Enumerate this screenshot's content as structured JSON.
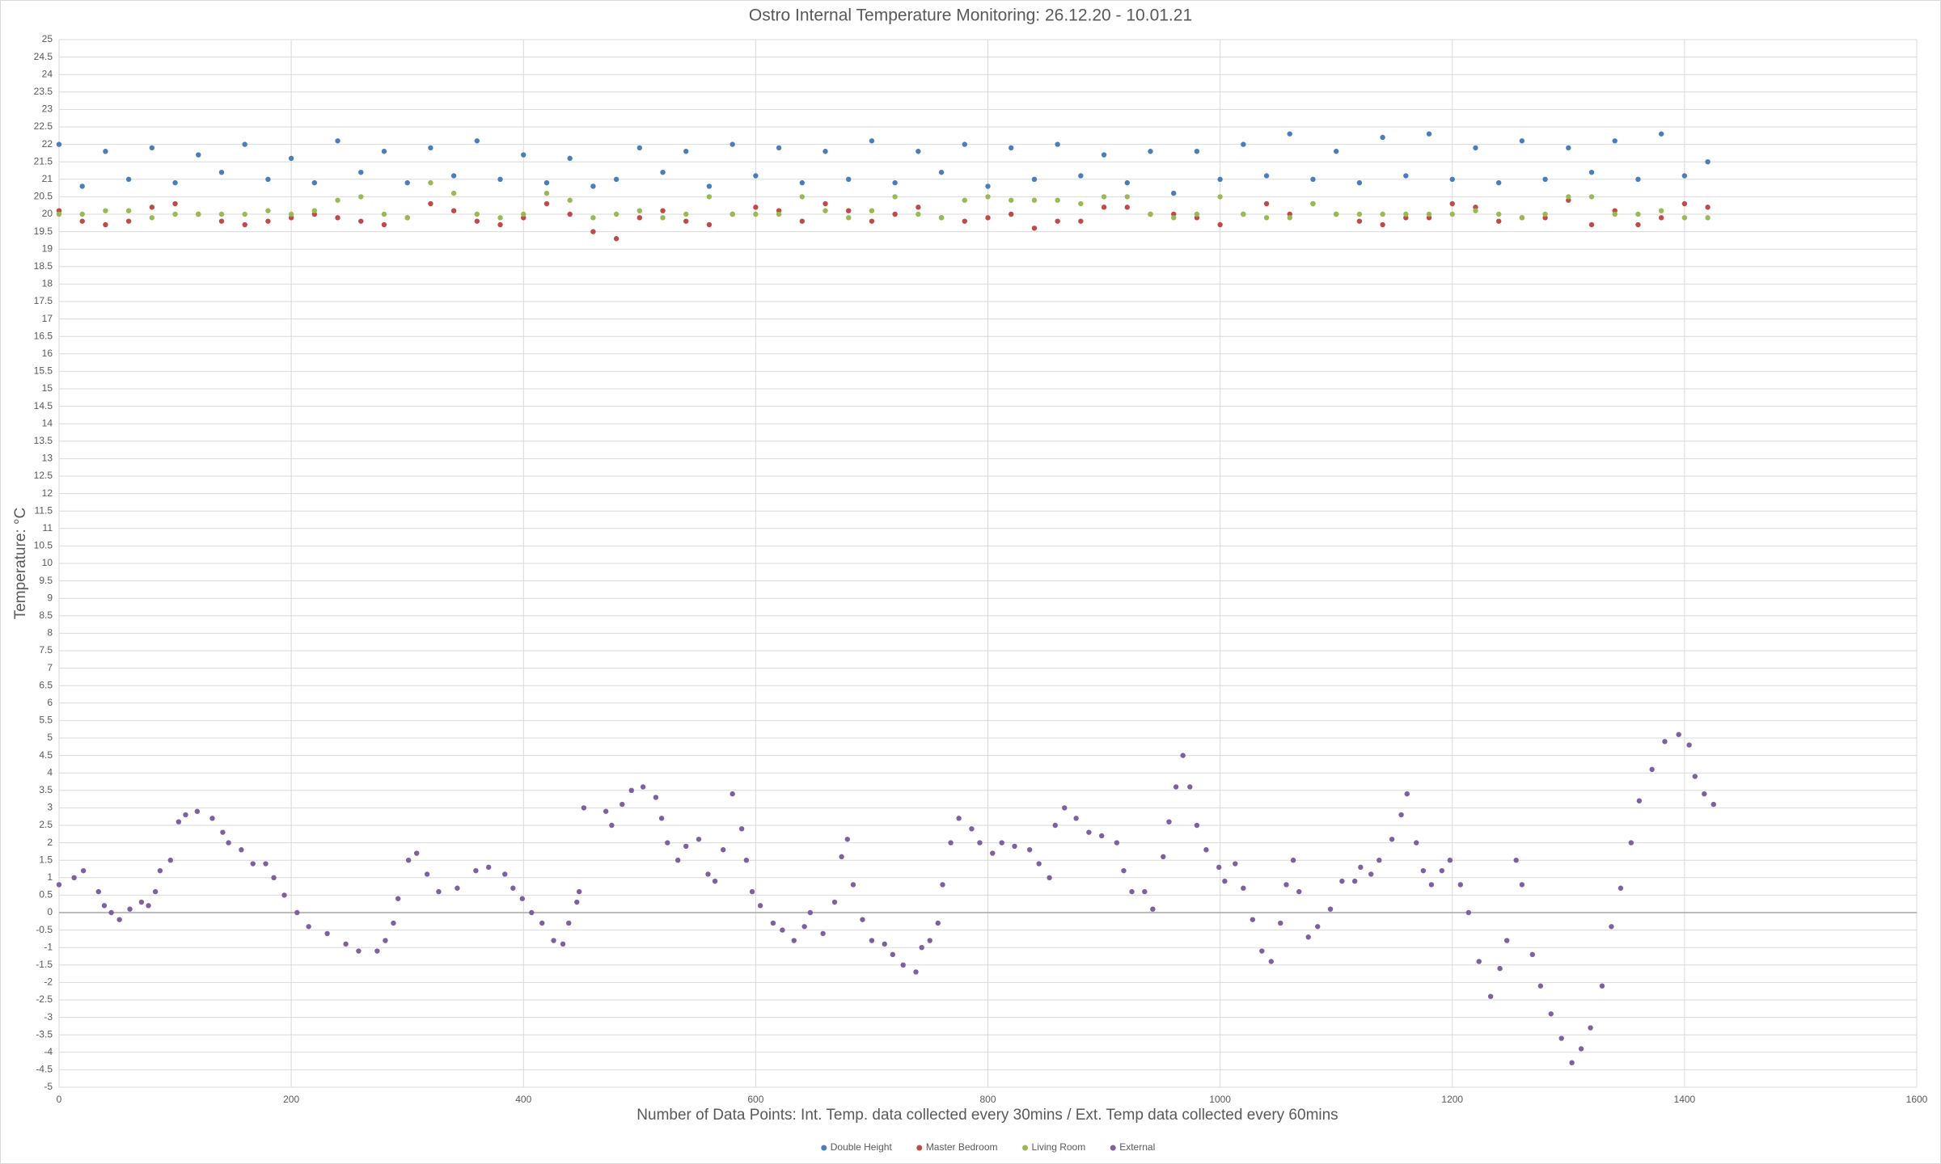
{
  "chart_data": {
    "type": "scatter",
    "title": "Ostro Internal Temperature Monitoring: 26.12.20 - 10.01.21",
    "x_label": "Number of Data Points: Int. Temp. data collected every 30mins / Ext. Temp data collected every 60mins",
    "y_label": "Temperature: °C",
    "xlim": [
      0,
      1600
    ],
    "xticks": [
      0,
      200,
      400,
      600,
      800,
      1000,
      1200,
      1400,
      1600
    ],
    "ylim": [
      -5,
      25
    ],
    "yticks": [
      -5,
      -4.5,
      -4,
      -3.5,
      -3,
      -2.5,
      -2,
      -1.5,
      -1,
      -0.5,
      0,
      0.5,
      1,
      1.5,
      2,
      2.5,
      3,
      3.5,
      4,
      4.5,
      5,
      5.5,
      6,
      6.5,
      7,
      7.5,
      8,
      8.5,
      9,
      9.5,
      10,
      10.5,
      11,
      11.5,
      12,
      12.5,
      13,
      13.5,
      14,
      14.5,
      15,
      15.5,
      16,
      16.5,
      17,
      17.5,
      18,
      18.5,
      19,
      19.5,
      20,
      20.5,
      21,
      21.5,
      22,
      22.5,
      23,
      23.5,
      24,
      24.5,
      25
    ],
    "grid": true,
    "legend": "bottom",
    "series": [
      {
        "name": "Double Height",
        "color": "#4a7ebb",
        "x": [
          0,
          20,
          40,
          60,
          80,
          100,
          120,
          140,
          160,
          180,
          200,
          220,
          240,
          260,
          280,
          300,
          320,
          340,
          360,
          380,
          400,
          420,
          440,
          460,
          480,
          500,
          520,
          540,
          560,
          580,
          600,
          620,
          640,
          660,
          680,
          700,
          720,
          740,
          760,
          780,
          800,
          820,
          840,
          860,
          880,
          900,
          920,
          940,
          960,
          980,
          1000,
          1020,
          1040,
          1060,
          1080,
          1100,
          1120,
          1140,
          1160,
          1180,
          1200,
          1220,
          1240,
          1260,
          1280,
          1300,
          1320,
          1340,
          1360,
          1380,
          1400,
          1420
        ],
        "values": [
          22.0,
          20.8,
          21.8,
          21.0,
          21.9,
          20.9,
          21.7,
          21.2,
          22.0,
          21.0,
          21.6,
          20.9,
          22.1,
          21.2,
          21.8,
          20.9,
          21.9,
          21.1,
          22.1,
          21.0,
          21.7,
          20.9,
          21.6,
          20.8,
          21.0,
          21.9,
          21.2,
          21.8,
          20.8,
          22.0,
          21.1,
          21.9,
          20.9,
          21.8,
          21.0,
          22.1,
          20.9,
          21.8,
          21.2,
          22.0,
          20.8,
          21.9,
          21.0,
          22.0,
          21.1,
          21.7,
          20.9,
          21.8,
          20.6,
          21.8,
          21.0,
          22.0,
          21.1,
          22.3,
          21.0,
          21.8,
          20.9,
          22.2,
          21.1,
          22.3,
          21.0,
          21.9,
          20.9,
          22.1,
          21.0,
          21.9,
          21.2,
          22.1,
          21.0,
          22.3,
          21.1,
          21.5
        ]
      },
      {
        "name": "Master Bedroom",
        "color": "#be4b48",
        "x": [
          0,
          20,
          40,
          60,
          80,
          100,
          120,
          140,
          160,
          180,
          200,
          220,
          240,
          260,
          280,
          300,
          320,
          340,
          360,
          380,
          400,
          420,
          440,
          460,
          480,
          500,
          520,
          540,
          560,
          580,
          600,
          620,
          640,
          660,
          680,
          700,
          720,
          740,
          760,
          780,
          800,
          820,
          840,
          860,
          880,
          900,
          920,
          940,
          960,
          980,
          1000,
          1020,
          1040,
          1060,
          1080,
          1100,
          1120,
          1140,
          1160,
          1180,
          1200,
          1220,
          1240,
          1260,
          1280,
          1300,
          1320,
          1340,
          1360,
          1380,
          1400,
          1420
        ],
        "values": [
          20.1,
          19.8,
          19.7,
          19.8,
          20.2,
          20.3,
          20.0,
          19.8,
          19.7,
          19.8,
          19.9,
          20.0,
          19.9,
          19.8,
          19.7,
          19.9,
          20.3,
          20.1,
          19.8,
          19.7,
          19.9,
          20.3,
          20.0,
          19.5,
          19.3,
          19.9,
          20.1,
          19.8,
          19.7,
          20.0,
          20.2,
          20.1,
          19.8,
          20.3,
          20.1,
          19.8,
          20.0,
          20.2,
          19.9,
          19.8,
          19.9,
          20.0,
          19.6,
          19.8,
          19.8,
          20.2,
          20.2,
          20.0,
          20.0,
          19.9,
          19.7,
          20.0,
          20.3,
          20.0,
          20.3,
          20.0,
          19.8,
          19.7,
          19.9,
          19.9,
          20.3,
          20.2,
          19.8,
          19.9,
          19.9,
          20.4,
          19.7,
          20.1,
          19.7,
          19.9,
          20.3,
          20.2
        ]
      },
      {
        "name": "Living Room",
        "color": "#98b954",
        "x": [
          0,
          20,
          40,
          60,
          80,
          100,
          120,
          140,
          160,
          180,
          200,
          220,
          240,
          260,
          280,
          300,
          320,
          340,
          360,
          380,
          400,
          420,
          440,
          460,
          480,
          500,
          520,
          540,
          560,
          580,
          600,
          620,
          640,
          660,
          680,
          700,
          720,
          740,
          760,
          780,
          800,
          820,
          840,
          860,
          880,
          900,
          920,
          940,
          960,
          980,
          1000,
          1020,
          1040,
          1060,
          1080,
          1100,
          1120,
          1140,
          1160,
          1180,
          1200,
          1220,
          1240,
          1260,
          1280,
          1300,
          1320,
          1340,
          1360,
          1380,
          1400,
          1420
        ],
        "values": [
          20.0,
          20.0,
          20.1,
          20.1,
          19.9,
          20.0,
          20.0,
          20.0,
          20.0,
          20.1,
          20.0,
          20.1,
          20.4,
          20.5,
          20.0,
          19.9,
          20.9,
          20.6,
          20.0,
          19.9,
          20.0,
          20.6,
          20.4,
          19.9,
          20.0,
          20.1,
          19.9,
          20.0,
          20.5,
          20.0,
          20.0,
          20.0,
          20.5,
          20.1,
          19.9,
          20.1,
          20.5,
          20.0,
          19.9,
          20.4,
          20.5,
          20.4,
          20.4,
          20.4,
          20.3,
          20.5,
          20.5,
          20.0,
          19.9,
          20.0,
          20.5,
          20.0,
          19.9,
          19.9,
          20.3,
          20.0,
          20.0,
          20.0,
          20.0,
          20.0,
          20.0,
          20.1,
          20.0,
          19.9,
          20.0,
          20.5,
          20.5,
          20.0,
          20.0,
          20.1,
          19.9,
          19.9
        ]
      },
      {
        "name": "External",
        "color": "#7d60a0",
        "x": [
          0,
          13,
          21,
          34,
          39,
          45,
          52,
          61,
          71,
          77,
          83,
          87,
          96,
          103,
          109,
          119,
          132,
          141,
          146,
          157,
          167,
          178,
          185,
          194,
          205,
          215,
          231,
          247,
          258,
          274,
          281,
          288,
          292,
          301,
          308,
          317,
          327,
          343,
          359,
          370,
          384,
          391,
          399,
          407,
          416,
          426,
          434,
          439,
          446,
          448,
          452,
          471,
          476,
          485,
          493,
          503,
          514,
          519,
          524,
          533,
          540,
          551,
          559,
          565,
          572,
          580,
          588,
          592,
          597,
          604,
          615,
          623,
          633,
          642,
          647,
          658,
          668,
          674,
          679,
          684,
          692,
          700,
          711,
          718,
          727,
          738,
          743,
          750,
          757,
          761,
          768,
          775,
          786,
          793,
          804,
          812,
          823,
          836,
          844,
          853,
          858,
          866,
          876,
          887,
          898,
          911,
          917,
          924,
          935,
          942,
          951,
          956,
          962,
          968,
          974,
          980,
          988,
          999,
          1004,
          1013,
          1020,
          1028,
          1036,
          1044,
          1052,
          1057,
          1063,
          1068,
          1076,
          1084,
          1095,
          1105,
          1116,
          1121,
          1130,
          1137,
          1148,
          1156,
          1161,
          1169,
          1175,
          1182,
          1191,
          1198,
          1207,
          1214,
          1223,
          1233,
          1241,
          1247,
          1255,
          1260,
          1269,
          1276,
          1285,
          1294,
          1303,
          1311,
          1319,
          1329,
          1337,
          1345,
          1354,
          1361,
          1372,
          1383,
          1395,
          1404,
          1409,
          1417,
          1425
        ],
        "values": [
          0.8,
          1.0,
          1.2,
          0.6,
          0.2,
          0.0,
          -0.2,
          0.1,
          0.3,
          0.2,
          0.6,
          1.2,
          1.5,
          2.6,
          2.8,
          2.9,
          2.7,
          2.3,
          2.0,
          1.8,
          1.4,
          1.4,
          1.0,
          0.5,
          0.0,
          -0.4,
          -0.6,
          -0.9,
          -1.1,
          -1.1,
          -0.8,
          -0.3,
          0.4,
          1.5,
          1.7,
          1.1,
          0.6,
          0.7,
          1.2,
          1.3,
          1.1,
          0.7,
          0.4,
          0.0,
          -0.3,
          -0.8,
          -0.9,
          -0.3,
          0.3,
          0.6,
          3.0,
          2.9,
          2.5,
          3.1,
          3.5,
          3.6,
          3.3,
          2.7,
          2.0,
          1.5,
          1.9,
          2.1,
          1.1,
          0.9,
          1.8,
          3.4,
          2.4,
          1.5,
          0.6,
          0.2,
          -0.3,
          -0.5,
          -0.8,
          -0.4,
          0.0,
          -0.6,
          0.3,
          1.6,
          2.1,
          0.8,
          -0.2,
          -0.8,
          -0.9,
          -1.2,
          -1.5,
          -1.7,
          -1.0,
          -0.8,
          -0.3,
          0.8,
          2.0,
          2.7,
          2.4,
          2.0,
          1.7,
          2.0,
          1.9,
          1.8,
          1.4,
          1.0,
          2.5,
          3.0,
          2.7,
          2.3,
          2.2,
          2.0,
          1.2,
          0.6,
          0.6,
          0.1,
          1.6,
          2.6,
          3.6,
          4.5,
          3.6,
          2.5,
          1.8,
          1.3,
          0.9,
          1.4,
          0.7,
          -0.2,
          -1.1,
          -1.4,
          -0.3,
          0.8,
          1.5,
          0.6,
          -0.7,
          -0.4,
          0.1,
          0.9,
          0.9,
          1.3,
          1.1,
          1.5,
          2.1,
          2.8,
          3.4,
          2.0,
          1.2,
          0.8,
          1.2,
          1.5,
          0.8,
          0.0,
          -1.4,
          -2.4,
          -1.6,
          -0.8,
          1.5,
          0.8,
          -1.2,
          -2.1,
          -2.9,
          -3.6,
          -4.3,
          -3.9,
          -3.3,
          -2.1,
          -0.4,
          0.7,
          2.0,
          3.2,
          4.1,
          4.9,
          5.1,
          4.8,
          3.9,
          3.4,
          3.1
        ]
      }
    ]
  }
}
